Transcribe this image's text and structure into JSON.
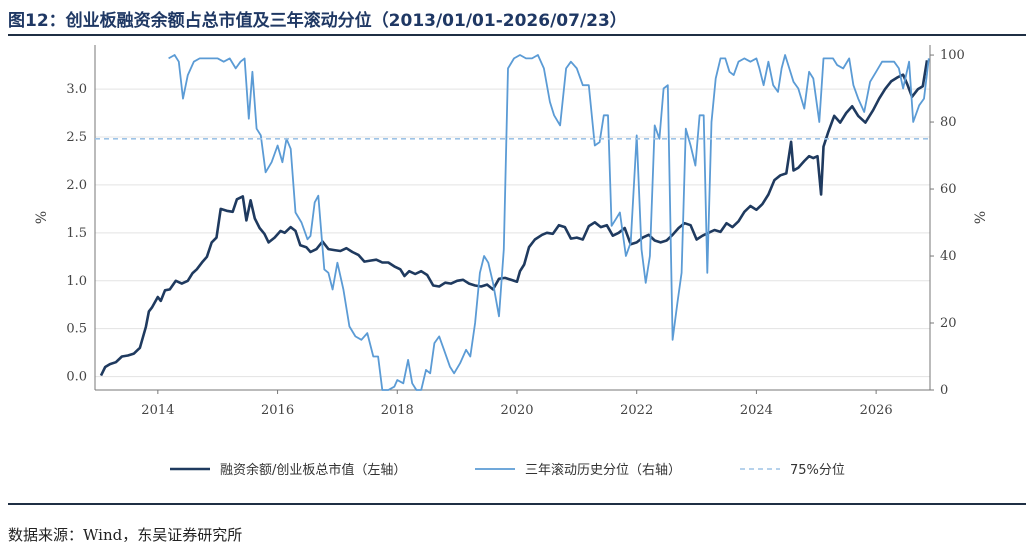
{
  "title": "图12：创业板融资余额占总市值及三年滚动分位（2013/01/01-2026/07/23）",
  "source": "数据来源：Wind，东吴证券研究所",
  "chart_data": {
    "type": "line",
    "ylabel_left": "%",
    "ylabel_right": "%",
    "xlim": [
      2012.95,
      2026.9
    ],
    "ylim_left": [
      -0.14,
      3.46
    ],
    "ylim_right": [
      0,
      103
    ],
    "x_ticks": [
      "2014",
      "2016",
      "2018",
      "2020",
      "2022",
      "2024",
      "2026"
    ],
    "y_left_ticks": [
      "0.0",
      "0.5",
      "1.0",
      "1.5",
      "2.0",
      "2.5",
      "3.0"
    ],
    "y_right_ticks": [
      "0",
      "20",
      "40",
      "60",
      "80",
      "100"
    ],
    "grid": "horizontal",
    "legend_position": "bottom",
    "series": [
      {
        "name": "融资余额/创业板总市值（左轴）",
        "axis": "left",
        "color": "#1f3a5f",
        "points": [
          [
            2013.05,
            0.01
          ],
          [
            2013.12,
            0.1
          ],
          [
            2013.2,
            0.13
          ],
          [
            2013.3,
            0.15
          ],
          [
            2013.4,
            0.21
          ],
          [
            2013.5,
            0.22
          ],
          [
            2013.6,
            0.24
          ],
          [
            2013.7,
            0.3
          ],
          [
            2013.8,
            0.52
          ],
          [
            2013.85,
            0.68
          ],
          [
            2013.9,
            0.72
          ],
          [
            2014.0,
            0.83
          ],
          [
            2014.05,
            0.79
          ],
          [
            2014.12,
            0.9
          ],
          [
            2014.2,
            0.91
          ],
          [
            2014.3,
            1.0
          ],
          [
            2014.4,
            0.97
          ],
          [
            2014.5,
            1.0
          ],
          [
            2014.58,
            1.08
          ],
          [
            2014.65,
            1.12
          ],
          [
            2014.75,
            1.2
          ],
          [
            2014.82,
            1.25
          ],
          [
            2014.9,
            1.4
          ],
          [
            2014.98,
            1.45
          ],
          [
            2015.05,
            1.75
          ],
          [
            2015.15,
            1.73
          ],
          [
            2015.25,
            1.72
          ],
          [
            2015.32,
            1.85
          ],
          [
            2015.42,
            1.88
          ],
          [
            2015.48,
            1.63
          ],
          [
            2015.55,
            1.84
          ],
          [
            2015.62,
            1.65
          ],
          [
            2015.7,
            1.55
          ],
          [
            2015.78,
            1.49
          ],
          [
            2015.85,
            1.4
          ],
          [
            2015.95,
            1.45
          ],
          [
            2016.05,
            1.52
          ],
          [
            2016.12,
            1.5
          ],
          [
            2016.22,
            1.56
          ],
          [
            2016.3,
            1.52
          ],
          [
            2016.38,
            1.37
          ],
          [
            2016.48,
            1.35
          ],
          [
            2016.55,
            1.3
          ],
          [
            2016.65,
            1.33
          ],
          [
            2016.75,
            1.41
          ],
          [
            2016.85,
            1.33
          ],
          [
            2016.95,
            1.32
          ],
          [
            2017.05,
            1.31
          ],
          [
            2017.15,
            1.34
          ],
          [
            2017.25,
            1.3
          ],
          [
            2017.35,
            1.27
          ],
          [
            2017.45,
            1.2
          ],
          [
            2017.55,
            1.21
          ],
          [
            2017.65,
            1.22
          ],
          [
            2017.75,
            1.19
          ],
          [
            2017.85,
            1.19
          ],
          [
            2017.95,
            1.15
          ],
          [
            2018.05,
            1.12
          ],
          [
            2018.12,
            1.05
          ],
          [
            2018.2,
            1.1
          ],
          [
            2018.3,
            1.07
          ],
          [
            2018.4,
            1.1
          ],
          [
            2018.5,
            1.06
          ],
          [
            2018.6,
            0.95
          ],
          [
            2018.7,
            0.94
          ],
          [
            2018.8,
            0.98
          ],
          [
            2018.9,
            0.97
          ],
          [
            2019.0,
            1.0
          ],
          [
            2019.1,
            1.01
          ],
          [
            2019.2,
            0.97
          ],
          [
            2019.3,
            0.95
          ],
          [
            2019.4,
            0.94
          ],
          [
            2019.5,
            0.96
          ],
          [
            2019.6,
            0.91
          ],
          [
            2019.7,
            1.02
          ],
          [
            2019.8,
            1.03
          ],
          [
            2019.9,
            1.01
          ],
          [
            2020.0,
            0.99
          ],
          [
            2020.05,
            1.1
          ],
          [
            2020.12,
            1.17
          ],
          [
            2020.2,
            1.35
          ],
          [
            2020.3,
            1.43
          ],
          [
            2020.42,
            1.48
          ],
          [
            2020.5,
            1.5
          ],
          [
            2020.6,
            1.49
          ],
          [
            2020.7,
            1.58
          ],
          [
            2020.8,
            1.56
          ],
          [
            2020.9,
            1.44
          ],
          [
            2021.0,
            1.45
          ],
          [
            2021.1,
            1.43
          ],
          [
            2021.2,
            1.57
          ],
          [
            2021.3,
            1.61
          ],
          [
            2021.4,
            1.56
          ],
          [
            2021.5,
            1.58
          ],
          [
            2021.6,
            1.47
          ],
          [
            2021.7,
            1.5
          ],
          [
            2021.8,
            1.55
          ],
          [
            2021.9,
            1.38
          ],
          [
            2022.0,
            1.4
          ],
          [
            2022.1,
            1.45
          ],
          [
            2022.2,
            1.48
          ],
          [
            2022.3,
            1.42
          ],
          [
            2022.4,
            1.4
          ],
          [
            2022.5,
            1.42
          ],
          [
            2022.6,
            1.48
          ],
          [
            2022.7,
            1.55
          ],
          [
            2022.8,
            1.6
          ],
          [
            2022.9,
            1.58
          ],
          [
            2023.0,
            1.43
          ],
          [
            2023.1,
            1.47
          ],
          [
            2023.2,
            1.5
          ],
          [
            2023.3,
            1.53
          ],
          [
            2023.4,
            1.51
          ],
          [
            2023.5,
            1.6
          ],
          [
            2023.6,
            1.56
          ],
          [
            2023.7,
            1.62
          ],
          [
            2023.8,
            1.72
          ],
          [
            2023.9,
            1.78
          ],
          [
            2024.0,
            1.74
          ],
          [
            2024.1,
            1.8
          ],
          [
            2024.2,
            1.9
          ],
          [
            2024.3,
            2.05
          ],
          [
            2024.4,
            2.1
          ],
          [
            2024.5,
            2.12
          ],
          [
            2024.58,
            2.45
          ],
          [
            2024.62,
            2.15
          ],
          [
            2024.7,
            2.18
          ],
          [
            2024.8,
            2.25
          ],
          [
            2024.88,
            2.3
          ],
          [
            2024.95,
            2.28
          ],
          [
            2025.02,
            2.3
          ],
          [
            2025.08,
            1.9
          ],
          [
            2025.12,
            2.4
          ],
          [
            2025.2,
            2.55
          ],
          [
            2025.3,
            2.72
          ],
          [
            2025.4,
            2.65
          ],
          [
            2025.5,
            2.75
          ],
          [
            2025.6,
            2.82
          ],
          [
            2025.7,
            2.72
          ],
          [
            2025.82,
            2.65
          ],
          [
            2025.95,
            2.78
          ],
          [
            2026.05,
            2.9
          ],
          [
            2026.15,
            3.0
          ],
          [
            2026.25,
            3.08
          ],
          [
            2026.35,
            3.12
          ],
          [
            2026.45,
            3.15
          ],
          [
            2026.52,
            3.05
          ],
          [
            2026.6,
            2.92
          ],
          [
            2026.7,
            3.0
          ],
          [
            2026.78,
            3.03
          ],
          [
            2026.85,
            3.3
          ]
        ]
      },
      {
        "name": "三年滚动历史分位（右轴）",
        "axis": "right",
        "color": "#5b9bd5",
        "points": [
          [
            2014.18,
            99
          ],
          [
            2014.28,
            100
          ],
          [
            2014.35,
            98
          ],
          [
            2014.42,
            87
          ],
          [
            2014.5,
            94
          ],
          [
            2014.6,
            98
          ],
          [
            2014.7,
            99
          ],
          [
            2014.8,
            99
          ],
          [
            2014.9,
            99
          ],
          [
            2015.0,
            99
          ],
          [
            2015.1,
            98
          ],
          [
            2015.2,
            99
          ],
          [
            2015.3,
            96
          ],
          [
            2015.38,
            98
          ],
          [
            2015.45,
            99
          ],
          [
            2015.52,
            81
          ],
          [
            2015.58,
            95
          ],
          [
            2015.65,
            78
          ],
          [
            2015.72,
            76
          ],
          [
            2015.8,
            65
          ],
          [
            2015.9,
            68
          ],
          [
            2016.0,
            73
          ],
          [
            2016.08,
            68
          ],
          [
            2016.15,
            75
          ],
          [
            2016.22,
            72
          ],
          [
            2016.3,
            53
          ],
          [
            2016.4,
            50
          ],
          [
            2016.5,
            45
          ],
          [
            2016.55,
            46
          ],
          [
            2016.62,
            56
          ],
          [
            2016.68,
            58
          ],
          [
            2016.78,
            36
          ],
          [
            2016.85,
            35
          ],
          [
            2016.92,
            30
          ],
          [
            2017.0,
            38
          ],
          [
            2017.1,
            30
          ],
          [
            2017.2,
            19
          ],
          [
            2017.3,
            16
          ],
          [
            2017.4,
            15
          ],
          [
            2017.5,
            17
          ],
          [
            2017.6,
            10
          ],
          [
            2017.68,
            10
          ],
          [
            2017.75,
            0
          ],
          [
            2017.85,
            0
          ],
          [
            2017.95,
            1
          ],
          [
            2018.0,
            3
          ],
          [
            2018.1,
            2
          ],
          [
            2018.18,
            9
          ],
          [
            2018.25,
            2
          ],
          [
            2018.32,
            0
          ],
          [
            2018.4,
            0
          ],
          [
            2018.48,
            6
          ],
          [
            2018.55,
            5
          ],
          [
            2018.62,
            14
          ],
          [
            2018.7,
            16
          ],
          [
            2018.78,
            12
          ],
          [
            2018.88,
            7
          ],
          [
            2018.95,
            5
          ],
          [
            2019.05,
            8
          ],
          [
            2019.15,
            12
          ],
          [
            2019.22,
            10
          ],
          [
            2019.3,
            20
          ],
          [
            2019.38,
            35
          ],
          [
            2019.45,
            40
          ],
          [
            2019.52,
            38
          ],
          [
            2019.6,
            32
          ],
          [
            2019.7,
            22
          ],
          [
            2019.78,
            42
          ],
          [
            2019.85,
            96
          ],
          [
            2019.95,
            99
          ],
          [
            2020.05,
            100
          ],
          [
            2020.15,
            99
          ],
          [
            2020.25,
            99
          ],
          [
            2020.35,
            100
          ],
          [
            2020.45,
            96
          ],
          [
            2020.55,
            86
          ],
          [
            2020.62,
            82
          ],
          [
            2020.72,
            79
          ],
          [
            2020.82,
            96
          ],
          [
            2020.9,
            98
          ],
          [
            2021.0,
            96
          ],
          [
            2021.1,
            91
          ],
          [
            2021.2,
            91
          ],
          [
            2021.3,
            73
          ],
          [
            2021.38,
            74
          ],
          [
            2021.45,
            82
          ],
          [
            2021.52,
            82
          ],
          [
            2021.58,
            49
          ],
          [
            2021.65,
            51
          ],
          [
            2021.72,
            53
          ],
          [
            2021.82,
            40
          ],
          [
            2021.9,
            44
          ],
          [
            2022.0,
            76
          ],
          [
            2022.08,
            42
          ],
          [
            2022.15,
            32
          ],
          [
            2022.22,
            40
          ],
          [
            2022.3,
            79
          ],
          [
            2022.38,
            75
          ],
          [
            2022.45,
            90
          ],
          [
            2022.52,
            91
          ],
          [
            2022.6,
            15
          ],
          [
            2022.68,
            26
          ],
          [
            2022.75,
            35
          ],
          [
            2022.82,
            78
          ],
          [
            2022.9,
            73
          ],
          [
            2022.98,
            67
          ],
          [
            2023.05,
            82
          ],
          [
            2023.12,
            82
          ],
          [
            2023.18,
            35
          ],
          [
            2023.25,
            80
          ],
          [
            2023.32,
            93
          ],
          [
            2023.4,
            99
          ],
          [
            2023.48,
            99
          ],
          [
            2023.55,
            95
          ],
          [
            2023.62,
            94
          ],
          [
            2023.7,
            98
          ],
          [
            2023.8,
            99
          ],
          [
            2023.9,
            98
          ],
          [
            2024.0,
            99
          ],
          [
            2024.05,
            96
          ],
          [
            2024.12,
            91
          ],
          [
            2024.2,
            98
          ],
          [
            2024.28,
            91
          ],
          [
            2024.36,
            89
          ],
          [
            2024.42,
            96
          ],
          [
            2024.48,
            100
          ],
          [
            2024.55,
            96
          ],
          [
            2024.62,
            92
          ],
          [
            2024.7,
            90
          ],
          [
            2024.8,
            84
          ],
          [
            2024.88,
            95
          ],
          [
            2024.95,
            93
          ],
          [
            2025.05,
            80
          ],
          [
            2025.12,
            99
          ],
          [
            2025.2,
            99
          ],
          [
            2025.28,
            99
          ],
          [
            2025.35,
            97
          ],
          [
            2025.45,
            96
          ],
          [
            2025.55,
            99
          ],
          [
            2025.62,
            91
          ],
          [
            2025.7,
            87
          ],
          [
            2025.8,
            83
          ],
          [
            2025.9,
            92
          ],
          [
            2026.0,
            95
          ],
          [
            2026.1,
            98
          ],
          [
            2026.2,
            98
          ],
          [
            2026.3,
            98
          ],
          [
            2026.38,
            96
          ],
          [
            2026.45,
            90
          ],
          [
            2026.55,
            98
          ],
          [
            2026.62,
            80
          ],
          [
            2026.72,
            85
          ],
          [
            2026.8,
            87
          ],
          [
            2026.88,
            99
          ]
        ]
      },
      {
        "name": "75%分位",
        "axis": "right",
        "color": "#9dc3e6",
        "style": "dashed",
        "value": 75
      }
    ]
  }
}
